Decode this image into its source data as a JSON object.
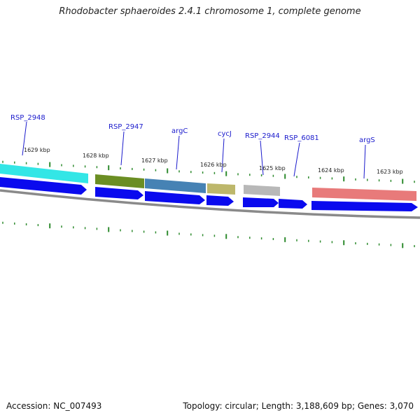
{
  "title": "Rhodobacter sphaeroides 2.4.1 chromosome 1, complete genome",
  "footer": {
    "accession": "Accession: NC_007493",
    "summary": "Topology: circular; Length: 3,188,609 bp; Genes: 3,070"
  },
  "scale_labels": [
    "1629 kbp",
    "1628 kbp",
    "1627 kbp",
    "1626 kbp",
    "1625 kbp",
    "1624 kbp",
    "1623 kbp"
  ],
  "gene_labels": [
    "RSP_2948",
    "RSP_2947",
    "argC",
    "cycJ",
    "RSP_2944",
    "RSP_6081",
    "argS"
  ],
  "colors": {
    "backbone": "#8a8a8a",
    "tick": "#2e8b2e",
    "arrow": "#0a0aee",
    "label": "#1a1acc",
    "cog_cyan": "#33e6e6",
    "cog_olive": "#6b8e23",
    "cog_steelblue": "#4682b4",
    "cog_khaki": "#bdb76b",
    "cog_gray": "#b8b8b8",
    "cog_pink": "#e87a7a"
  }
}
